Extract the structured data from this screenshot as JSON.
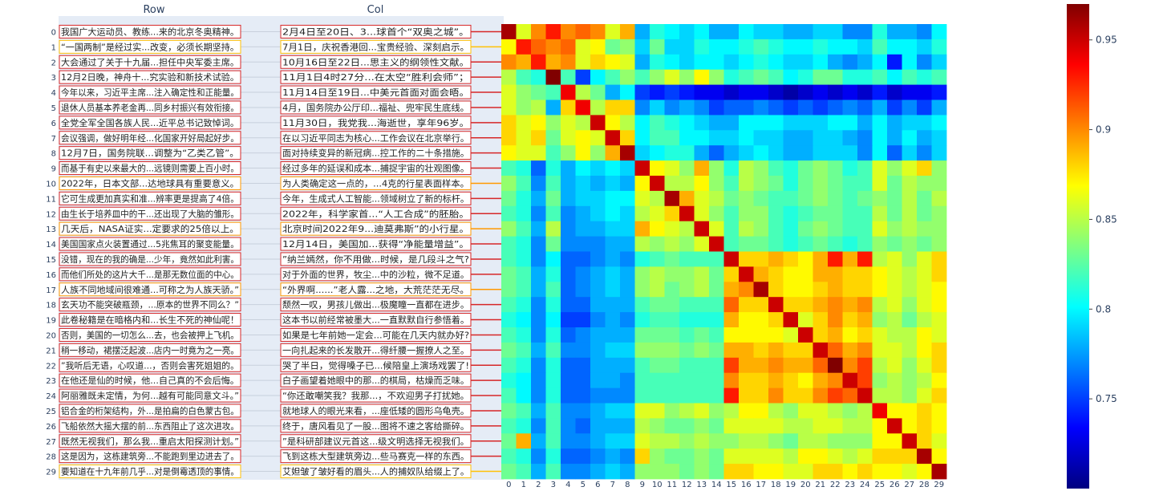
{
  "chart_data": {
    "type": "heatmap",
    "panel_titles": {
      "row": "Row",
      "col": "Col"
    },
    "row_labels": [
      "我国广大运动员、教练...来的北京冬奥精神。",
      "“一国两制”是经过实...改变，必须长期坚持。",
      "大会通过了关于十九届...担任中央军委主席。",
      "12月2日晚，神舟十...究实验和新技术试验。",
      "今年以来，习近平主席...注入确定性和正能量。",
      "退休人员基本养老金再...同乡村振兴有效衔接。",
      "全党全军全国各族人民...近平总书记致悼词。",
      "会议强调，做好明年经...化国家开好局起好步。",
      "12月7日，国务院联...调整为“乙类乙管”。",
      "而基于有史以来最大的...远镜则需要上百小时。",
      "2022年，日本文部...达地球具有重要意义。",
      "它可生成更加真实和准...辨率更是提高了4倍。",
      "由生长于培养皿中的干...还出现了大脑的雏形。",
      "几天后，NASA证实...定要求的25倍以上。",
      "美国国家点火装置通过...5兆焦耳的聚变能量。",
      "没错，现在的我的确是...少年，竟然如此利害。",
      "而他们所处的这片大千...是那无数位面的中心。",
      "人族不同地域间很难通...可称之为人族天骄。”",
      "玄天功不能突破瓶颈，...原本的世界不同么？”",
      "此卷秘籍是在暗格内和...长生不死的神仙呢！",
      "否则，美国的一切怎么...去，也会被押上飞机。",
      "稍一移动，裙摆泛起波...店内一时竟为之一亮。",
      "”我听后无语，心叹道...，否则会害死姐姐的。",
      "在他还是仙的时候，他...自己真的不会后悔。",
      "阿丽雅既未定情，为何...越有可能同意文斗。”",
      "铝合金的桁架结构，外...是拍扁的白色蒙古包。",
      "飞船依然大摇大摆的前...东西阻止了这次进攻。",
      "既然无视我们，那么我...重启太阳探测计划。”",
      "这是因为，这栋建筑旁...不能跑到里边进去了。",
      "要知道在十九年前几乎...对是倒霉透顶的事情。"
    ],
    "col_labels": [
      "2月4日至20日、3...球首个“双奥之城”。",
      "7月1日，庆祝香港回...宝贵经验、深刻启示。",
      "10月16日至22日...思主义的纲领性文献。",
      "11月1日4时27分...在太空“胜利会师”；",
      "11月14日至19日...中美元首面对面会晤。",
      "4月，国务院办公厅印...福祉、兜牢民生底线。",
      "11月30日，我党我...海逝世，享年96岁。",
      "在以习近平同志为核心...工作会议在北京举行。",
      "面对持续变异的新冠病...控工作的二十条措施。",
      "经过多年的延误和成本...捕捉宇宙的壮观图像。",
      "为人类确定这一点的，...4克的行星表面样本。",
      "今年，生成式人工智能...领域树立了新的标杆。",
      "2022年，科学家首...“人工合成”的胚胎。",
      "北京时间2022年9...迪莫弗斯”的小行星。",
      "12月14日，美国加...获得“净能量增益”。",
      "”纳兰嫣然，你不用做...时候，是几段斗之气?",
      "对于外面的世界，牧尘...中的沙粒，微不足道。",
      "“外界啊......”老人露...之地，大荒茫茫无尽。",
      "颓然一叹，男孩儿做出...极魔瞳一直都在进步。",
      "这本书以前经常被墨大...一直默默自行参悟着。",
      "如果是七年前她一定会...可能在几天内就办好?",
      "一向扎起来的长发散开...得纤腰一握撩人之至。",
      "哭了半日，觉得嗓子已...候陪皇上演场戏罢了!",
      "白子画望着她眼中的那...的棋局，枯燥而乏味。",
      "“你还敢嘲笑我？我那...，不欢迎男子打扰她。",
      "就地球人的眼光来看，...座低矮的圆形乌龟壳。",
      "终于，唐风看见了一股...图将不速之客给撕碎。",
      "”是科研部建议元首这...级文明选择无视我们。",
      "飞到这栋大型建筑旁边...些马赛克一样的东西。",
      "艾妲皱了皱好看的眉头...人的捕奴队给缀上了。"
    ],
    "pair_line_colors": [
      "#d62728",
      "#ffc107",
      "#d62728",
      "#d62728",
      "#d62728",
      "#d62728",
      "#d62728",
      "#d62728",
      "#d62728",
      "#d62728",
      "#ff9800",
      "#d62728",
      "#d62728",
      "#ff9800",
      "#d62728",
      "#d62728",
      "#d62728",
      "#ff9800",
      "#d62728",
      "#d62728",
      "#d62728",
      "#d62728",
      "#d62728",
      "#d62728",
      "#d62728",
      "#d62728",
      "#d62728",
      "#d62728",
      "#d62728",
      "#ffc107"
    ],
    "x_tick_labels": [
      "0",
      "1",
      "2",
      "3",
      "4",
      "5",
      "6",
      "7",
      "8",
      "9",
      "10",
      "11",
      "12",
      "13",
      "14",
      "15",
      "16",
      "17",
      "18",
      "19",
      "20",
      "21",
      "22",
      "23",
      "24",
      "25",
      "26",
      "27",
      "28",
      "29"
    ],
    "y_tick_labels": [
      "0",
      "1",
      "2",
      "3",
      "4",
      "5",
      "6",
      "7",
      "8",
      "9",
      "10",
      "11",
      "12",
      "13",
      "14",
      "15",
      "16",
      "17",
      "18",
      "19",
      "20",
      "21",
      "22",
      "23",
      "24",
      "25",
      "26",
      "27",
      "28",
      "29"
    ],
    "colorbar": {
      "range": [
        0.7,
        0.97
      ],
      "ticks": [
        0.75,
        0.8,
        0.85,
        0.9,
        0.95
      ],
      "tick_labels": [
        "0.75",
        "0.8",
        "0.85",
        "0.9",
        "0.95"
      ],
      "colorscale": [
        "#000080",
        "#0000ff",
        "#0080ff",
        "#00ffff",
        "#80ff80",
        "#ffff00",
        "#ff8000",
        "#ff0000",
        "#800000"
      ]
    },
    "z": [
      [
        0.96,
        0.86,
        0.9,
        0.93,
        0.9,
        0.91,
        0.9,
        0.86,
        0.89,
        0.78,
        0.81,
        0.8,
        0.79,
        0.8,
        0.78,
        0.78,
        0.8,
        0.79,
        0.79,
        0.78,
        0.78,
        0.79,
        0.79,
        0.77,
        0.77,
        0.81,
        0.78,
        0.78,
        0.77,
        0.8
      ],
      [
        0.87,
        0.93,
        0.91,
        0.9,
        0.91,
        0.86,
        0.87,
        0.83,
        0.84,
        0.79,
        0.83,
        0.79,
        0.79,
        0.81,
        0.8,
        0.8,
        0.81,
        0.82,
        0.81,
        0.8,
        0.8,
        0.81,
        0.8,
        0.8,
        0.79,
        0.82,
        0.8,
        0.8,
        0.79,
        0.81
      ],
      [
        0.9,
        0.89,
        0.93,
        0.89,
        0.9,
        0.86,
        0.88,
        0.87,
        0.86,
        0.78,
        0.81,
        0.8,
        0.79,
        0.8,
        0.8,
        0.79,
        0.8,
        0.81,
        0.8,
        0.79,
        0.79,
        0.8,
        0.78,
        0.77,
        0.78,
        0.8,
        0.74,
        0.8,
        0.77,
        0.79
      ],
      [
        0.85,
        0.82,
        0.81,
        0.97,
        0.82,
        0.75,
        0.8,
        0.82,
        0.84,
        0.82,
        0.84,
        0.86,
        0.84,
        0.87,
        0.84,
        0.81,
        0.82,
        0.83,
        0.82,
        0.8,
        0.81,
        0.83,
        0.83,
        0.81,
        0.81,
        0.82,
        0.8,
        0.82,
        0.81,
        0.82
      ],
      [
        0.86,
        0.84,
        0.83,
        0.82,
        0.94,
        0.85,
        0.83,
        0.78,
        0.8,
        0.75,
        0.74,
        0.75,
        0.74,
        0.73,
        0.73,
        0.72,
        0.73,
        0.73,
        0.72,
        0.71,
        0.72,
        0.73,
        0.72,
        0.73,
        0.72,
        0.74,
        0.72,
        0.73,
        0.73,
        0.74
      ],
      [
        0.86,
        0.84,
        0.85,
        0.78,
        0.88,
        0.94,
        0.85,
        0.88,
        0.88,
        0.77,
        0.79,
        0.77,
        0.78,
        0.77,
        0.75,
        0.76,
        0.76,
        0.77,
        0.76,
        0.75,
        0.76,
        0.75,
        0.76,
        0.77,
        0.76,
        0.78,
        0.75,
        0.77,
        0.75,
        0.78
      ],
      [
        0.88,
        0.86,
        0.87,
        0.84,
        0.86,
        0.85,
        0.95,
        0.87,
        0.85,
        0.8,
        0.82,
        0.81,
        0.8,
        0.79,
        0.78,
        0.78,
        0.8,
        0.8,
        0.8,
        0.79,
        0.79,
        0.79,
        0.8,
        0.8,
        0.78,
        0.8,
        0.78,
        0.79,
        0.79,
        0.8
      ],
      [
        0.88,
        0.86,
        0.88,
        0.83,
        0.86,
        0.87,
        0.86,
        0.95,
        0.88,
        0.8,
        0.82,
        0.82,
        0.8,
        0.8,
        0.79,
        0.79,
        0.8,
        0.79,
        0.79,
        0.78,
        0.78,
        0.79,
        0.79,
        0.78,
        0.77,
        0.8,
        0.78,
        0.8,
        0.78,
        0.79
      ],
      [
        0.87,
        0.86,
        0.86,
        0.82,
        0.84,
        0.87,
        0.84,
        0.89,
        0.96,
        0.79,
        0.8,
        0.81,
        0.81,
        0.78,
        0.76,
        0.78,
        0.79,
        0.8,
        0.79,
        0.78,
        0.78,
        0.79,
        0.79,
        0.79,
        0.77,
        0.8,
        0.76,
        0.79,
        0.77,
        0.79
      ],
      [
        0.82,
        0.81,
        0.76,
        0.81,
        0.78,
        0.8,
        0.79,
        0.8,
        0.79,
        0.95,
        0.87,
        0.86,
        0.84,
        0.89,
        0.84,
        0.81,
        0.85,
        0.84,
        0.82,
        0.81,
        0.83,
        0.84,
        0.83,
        0.81,
        0.82,
        0.86,
        0.84,
        0.86,
        0.88,
        0.84
      ],
      [
        0.84,
        0.82,
        0.77,
        0.82,
        0.78,
        0.79,
        0.78,
        0.79,
        0.78,
        0.87,
        0.95,
        0.85,
        0.85,
        0.87,
        0.84,
        0.82,
        0.85,
        0.84,
        0.83,
        0.81,
        0.83,
        0.84,
        0.83,
        0.82,
        0.82,
        0.86,
        0.83,
        0.85,
        0.84,
        0.84
      ],
      [
        0.83,
        0.81,
        0.78,
        0.83,
        0.78,
        0.79,
        0.79,
        0.8,
        0.8,
        0.86,
        0.85,
        0.96,
        0.89,
        0.86,
        0.85,
        0.83,
        0.84,
        0.83,
        0.82,
        0.82,
        0.83,
        0.84,
        0.83,
        0.82,
        0.83,
        0.84,
        0.83,
        0.85,
        0.83,
        0.85
      ],
      [
        0.82,
        0.81,
        0.77,
        0.82,
        0.77,
        0.78,
        0.79,
        0.8,
        0.79,
        0.85,
        0.86,
        0.88,
        0.95,
        0.86,
        0.84,
        0.82,
        0.84,
        0.84,
        0.82,
        0.81,
        0.82,
        0.83,
        0.83,
        0.82,
        0.82,
        0.85,
        0.83,
        0.85,
        0.83,
        0.84
      ],
      [
        0.84,
        0.82,
        0.78,
        0.85,
        0.77,
        0.78,
        0.78,
        0.79,
        0.79,
        0.89,
        0.87,
        0.86,
        0.85,
        0.95,
        0.86,
        0.82,
        0.85,
        0.84,
        0.82,
        0.81,
        0.83,
        0.84,
        0.83,
        0.82,
        0.82,
        0.86,
        0.84,
        0.85,
        0.84,
        0.84
      ],
      [
        0.82,
        0.81,
        0.77,
        0.83,
        0.77,
        0.77,
        0.77,
        0.78,
        0.78,
        0.85,
        0.84,
        0.85,
        0.84,
        0.86,
        0.95,
        0.82,
        0.83,
        0.83,
        0.82,
        0.81,
        0.82,
        0.83,
        0.82,
        0.81,
        0.82,
        0.84,
        0.83,
        0.84,
        0.83,
        0.84
      ],
      [
        0.82,
        0.81,
        0.77,
        0.8,
        0.76,
        0.76,
        0.77,
        0.78,
        0.77,
        0.81,
        0.82,
        0.83,
        0.82,
        0.82,
        0.82,
        0.95,
        0.88,
        0.88,
        0.89,
        0.88,
        0.87,
        0.89,
        0.93,
        0.89,
        0.93,
        0.85,
        0.86,
        0.84,
        0.86,
        0.88
      ],
      [
        0.83,
        0.82,
        0.78,
        0.81,
        0.76,
        0.77,
        0.78,
        0.79,
        0.78,
        0.84,
        0.85,
        0.84,
        0.84,
        0.85,
        0.83,
        0.88,
        0.95,
        0.89,
        0.88,
        0.87,
        0.87,
        0.89,
        0.89,
        0.88,
        0.88,
        0.87,
        0.86,
        0.85,
        0.86,
        0.88
      ],
      [
        0.83,
        0.82,
        0.78,
        0.82,
        0.76,
        0.77,
        0.78,
        0.79,
        0.78,
        0.84,
        0.85,
        0.83,
        0.84,
        0.85,
        0.83,
        0.89,
        0.9,
        0.96,
        0.88,
        0.87,
        0.87,
        0.88,
        0.89,
        0.88,
        0.88,
        0.87,
        0.86,
        0.85,
        0.86,
        0.87
      ],
      [
        0.82,
        0.81,
        0.77,
        0.81,
        0.76,
        0.76,
        0.78,
        0.78,
        0.78,
        0.82,
        0.83,
        0.83,
        0.82,
        0.82,
        0.82,
        0.91,
        0.88,
        0.88,
        0.95,
        0.88,
        0.88,
        0.89,
        0.9,
        0.89,
        0.9,
        0.85,
        0.86,
        0.84,
        0.86,
        0.87
      ],
      [
        0.81,
        0.8,
        0.77,
        0.8,
        0.75,
        0.75,
        0.77,
        0.78,
        0.77,
        0.81,
        0.82,
        0.82,
        0.81,
        0.81,
        0.81,
        0.89,
        0.87,
        0.87,
        0.88,
        0.95,
        0.86,
        0.88,
        0.9,
        0.88,
        0.89,
        0.84,
        0.85,
        0.83,
        0.85,
        0.86
      ],
      [
        0.82,
        0.81,
        0.77,
        0.81,
        0.76,
        0.77,
        0.78,
        0.78,
        0.78,
        0.83,
        0.83,
        0.83,
        0.82,
        0.83,
        0.82,
        0.87,
        0.87,
        0.87,
        0.87,
        0.86,
        0.95,
        0.88,
        0.89,
        0.87,
        0.88,
        0.86,
        0.85,
        0.85,
        0.87,
        0.86
      ],
      [
        0.83,
        0.82,
        0.78,
        0.82,
        0.77,
        0.77,
        0.78,
        0.79,
        0.79,
        0.84,
        0.84,
        0.84,
        0.83,
        0.84,
        0.83,
        0.89,
        0.89,
        0.88,
        0.89,
        0.88,
        0.88,
        0.95,
        0.91,
        0.89,
        0.9,
        0.86,
        0.86,
        0.85,
        0.87,
        0.88
      ],
      [
        0.82,
        0.81,
        0.77,
        0.81,
        0.76,
        0.76,
        0.78,
        0.78,
        0.78,
        0.82,
        0.83,
        0.83,
        0.82,
        0.82,
        0.82,
        0.92,
        0.89,
        0.89,
        0.9,
        0.89,
        0.89,
        0.91,
        0.97,
        0.9,
        0.92,
        0.85,
        0.86,
        0.84,
        0.86,
        0.88
      ],
      [
        0.81,
        0.8,
        0.77,
        0.81,
        0.76,
        0.76,
        0.78,
        0.78,
        0.77,
        0.82,
        0.82,
        0.82,
        0.82,
        0.82,
        0.82,
        0.9,
        0.88,
        0.88,
        0.89,
        0.88,
        0.87,
        0.89,
        0.9,
        0.95,
        0.92,
        0.84,
        0.85,
        0.84,
        0.85,
        0.87
      ],
      [
        0.82,
        0.8,
        0.77,
        0.81,
        0.76,
        0.76,
        0.77,
        0.77,
        0.77,
        0.82,
        0.82,
        0.82,
        0.82,
        0.82,
        0.82,
        0.93,
        0.88,
        0.88,
        0.9,
        0.88,
        0.88,
        0.9,
        0.92,
        0.91,
        0.95,
        0.85,
        0.85,
        0.84,
        0.86,
        0.88
      ],
      [
        0.83,
        0.82,
        0.78,
        0.82,
        0.77,
        0.77,
        0.78,
        0.79,
        0.79,
        0.86,
        0.86,
        0.84,
        0.85,
        0.86,
        0.84,
        0.85,
        0.87,
        0.87,
        0.85,
        0.84,
        0.86,
        0.86,
        0.85,
        0.84,
        0.85,
        0.94,
        0.87,
        0.87,
        0.88,
        0.87
      ],
      [
        0.82,
        0.81,
        0.77,
        0.82,
        0.77,
        0.76,
        0.78,
        0.78,
        0.78,
        0.85,
        0.84,
        0.83,
        0.83,
        0.84,
        0.83,
        0.86,
        0.86,
        0.86,
        0.86,
        0.85,
        0.85,
        0.86,
        0.86,
        0.85,
        0.85,
        0.87,
        0.95,
        0.87,
        0.88,
        0.87
      ],
      [
        0.83,
        0.89,
        0.78,
        0.82,
        0.77,
        0.77,
        0.78,
        0.79,
        0.79,
        0.86,
        0.85,
        0.85,
        0.84,
        0.85,
        0.84,
        0.84,
        0.85,
        0.85,
        0.84,
        0.83,
        0.85,
        0.85,
        0.84,
        0.84,
        0.84,
        0.87,
        0.87,
        0.95,
        0.88,
        0.86
      ],
      [
        0.82,
        0.81,
        0.77,
        0.81,
        0.76,
        0.76,
        0.77,
        0.78,
        0.77,
        0.88,
        0.84,
        0.83,
        0.83,
        0.84,
        0.83,
        0.86,
        0.86,
        0.86,
        0.86,
        0.85,
        0.87,
        0.87,
        0.86,
        0.85,
        0.86,
        0.88,
        0.88,
        0.88,
        0.96,
        0.87
      ],
      [
        0.83,
        0.82,
        0.78,
        0.82,
        0.77,
        0.77,
        0.78,
        0.79,
        0.78,
        0.84,
        0.84,
        0.84,
        0.83,
        0.84,
        0.83,
        0.88,
        0.88,
        0.87,
        0.87,
        0.86,
        0.86,
        0.88,
        0.88,
        0.87,
        0.88,
        0.87,
        0.87,
        0.86,
        0.87,
        0.96
      ]
    ]
  }
}
